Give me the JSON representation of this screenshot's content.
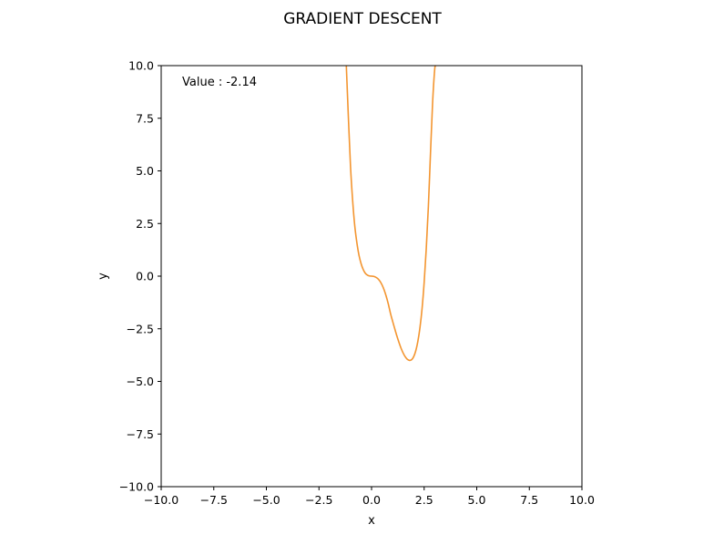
{
  "chart_data": {
    "type": "line",
    "title": "GRADIENT DESCENT",
    "xlabel": "x",
    "ylabel": "y",
    "xlim": [
      -10,
      10
    ],
    "ylim": [
      -10,
      10
    ],
    "xticks": [
      -10,
      -7.5,
      -5,
      -2.5,
      0,
      2.5,
      5,
      7.5,
      10
    ],
    "yticks": [
      -10,
      -7.5,
      -5,
      -2.5,
      0,
      2.5,
      5,
      7.5,
      10
    ],
    "xtick_labels": [
      "−10.0",
      "−7.5",
      "−5.0",
      "−2.5",
      "0.0",
      "2.5",
      "5.0",
      "7.5",
      "10.0"
    ],
    "ytick_labels": [
      "−10.0",
      "−7.5",
      "−5.0",
      "−2.5",
      "0.0",
      "2.5",
      "5.0",
      "7.5",
      "10.0"
    ],
    "grid": false,
    "annotation": "Value : -2.14",
    "series": [
      {
        "color": "#f39530",
        "x": [
          -1.2,
          -1.1,
          -1.0,
          -0.9,
          -0.8,
          -0.7,
          -0.6,
          -0.5,
          -0.4,
          -0.3,
          -0.2,
          -0.1,
          0.0,
          0.1,
          0.2,
          0.3,
          0.4,
          0.5,
          0.6,
          0.7,
          0.8,
          0.9,
          1.0,
          1.1,
          1.2,
          1.3,
          1.4,
          1.5,
          1.6,
          1.7,
          1.8,
          1.9,
          2.0,
          2.1,
          2.2,
          2.3,
          2.4,
          2.5,
          2.6,
          2.7,
          2.8,
          2.9,
          3.0,
          3.05
        ],
        "y": [
          10,
          7.5,
          5.2,
          3.6,
          2.4,
          1.6,
          1.0,
          0.6,
          0.32,
          0.14,
          0.05,
          0.01,
          0.0,
          -0.01,
          -0.05,
          -0.12,
          -0.24,
          -0.42,
          -0.66,
          -0.97,
          -1.34,
          -1.77,
          -2.14,
          -2.49,
          -2.83,
          -3.14,
          -3.42,
          -3.65,
          -3.83,
          -3.95,
          -4.0,
          -3.97,
          -3.83,
          -3.55,
          -3.1,
          -2.45,
          -1.55,
          -0.3,
          1.3,
          3.3,
          5.8,
          8.2,
          9.8,
          10
        ]
      }
    ]
  }
}
